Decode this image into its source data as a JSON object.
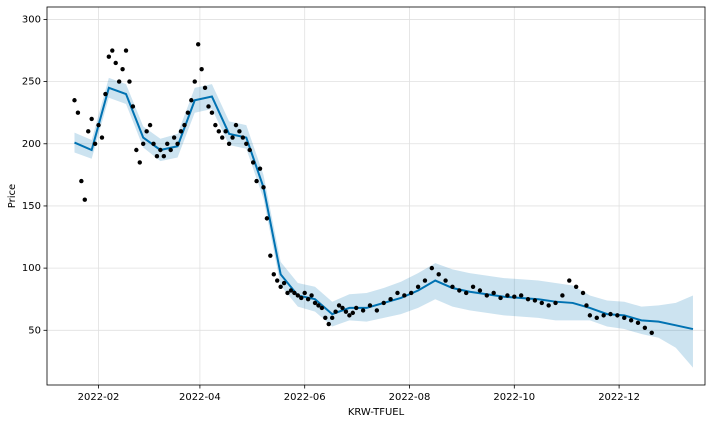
{
  "chart_data": {
    "type": "line",
    "x_label": "KRW-TFUEL",
    "y_label": "Price",
    "grid": true,
    "xlim": [
      "2022-01-02",
      "2023-01-20"
    ],
    "ylim": [
      6,
      310
    ],
    "xticks": [
      {
        "value": "2022-02-01",
        "label": "2022-02"
      },
      {
        "value": "2022-04-01",
        "label": "2022-04"
      },
      {
        "value": "2022-06-01",
        "label": "2022-06"
      },
      {
        "value": "2022-08-01",
        "label": "2022-08"
      },
      {
        "value": "2022-10-01",
        "label": "2022-10"
      },
      {
        "value": "2022-12-01",
        "label": "2022-12"
      }
    ],
    "yticks": [
      50,
      100,
      150,
      200,
      250,
      300
    ],
    "series": [
      {
        "style": "points",
        "color": "#000000",
        "x": [
          "2022-01-18",
          "2022-01-20",
          "2022-01-22",
          "2022-01-24",
          "2022-01-26",
          "2022-01-28",
          "2022-01-30",
          "2022-02-01",
          "2022-02-03",
          "2022-02-05",
          "2022-02-07",
          "2022-02-09",
          "2022-02-11",
          "2022-02-13",
          "2022-02-15",
          "2022-02-17",
          "2022-02-19",
          "2022-02-21",
          "2022-02-23",
          "2022-02-25",
          "2022-02-27",
          "2022-03-01",
          "2022-03-03",
          "2022-03-05",
          "2022-03-07",
          "2022-03-09",
          "2022-03-11",
          "2022-03-13",
          "2022-03-15",
          "2022-03-17",
          "2022-03-19",
          "2022-03-21",
          "2022-03-23",
          "2022-03-25",
          "2022-03-27",
          "2022-03-29",
          "2022-03-31",
          "2022-04-02",
          "2022-04-04",
          "2022-04-06",
          "2022-04-08",
          "2022-04-10",
          "2022-04-12",
          "2022-04-14",
          "2022-04-16",
          "2022-04-18",
          "2022-04-20",
          "2022-04-22",
          "2022-04-24",
          "2022-04-26",
          "2022-04-28",
          "2022-04-30",
          "2022-05-02",
          "2022-05-04",
          "2022-05-06",
          "2022-05-08",
          "2022-05-10",
          "2022-05-12",
          "2022-05-14",
          "2022-05-16",
          "2022-05-18",
          "2022-05-20",
          "2022-05-22",
          "2022-05-24",
          "2022-05-26",
          "2022-05-28",
          "2022-05-30",
          "2022-06-01",
          "2022-06-03",
          "2022-06-05",
          "2022-06-07",
          "2022-06-09",
          "2022-06-11",
          "2022-06-13",
          "2022-06-15",
          "2022-06-17",
          "2022-06-19",
          "2022-06-21",
          "2022-06-23",
          "2022-06-25",
          "2022-06-27",
          "2022-06-29",
          "2022-07-01",
          "2022-07-05",
          "2022-07-09",
          "2022-07-13",
          "2022-07-17",
          "2022-07-21",
          "2022-07-25",
          "2022-07-29",
          "2022-08-02",
          "2022-08-06",
          "2022-08-10",
          "2022-08-14",
          "2022-08-18",
          "2022-08-22",
          "2022-08-26",
          "2022-08-30",
          "2022-09-03",
          "2022-09-07",
          "2022-09-11",
          "2022-09-15",
          "2022-09-19",
          "2022-09-23",
          "2022-09-27",
          "2022-10-01",
          "2022-10-05",
          "2022-10-09",
          "2022-10-13",
          "2022-10-17",
          "2022-10-21",
          "2022-10-25",
          "2022-10-29",
          "2022-11-02",
          "2022-11-06",
          "2022-11-10",
          "2022-11-12",
          "2022-11-14",
          "2022-11-18",
          "2022-11-22",
          "2022-11-26",
          "2022-11-30",
          "2022-12-04",
          "2022-12-08",
          "2022-12-12",
          "2022-12-16",
          "2022-12-20"
        ],
        "values": [
          235,
          225,
          170,
          155,
          210,
          220,
          200,
          215,
          205,
          240,
          270,
          275,
          265,
          250,
          260,
          275,
          250,
          230,
          195,
          185,
          200,
          210,
          215,
          200,
          190,
          195,
          190,
          200,
          195,
          205,
          200,
          210,
          215,
          225,
          235,
          250,
          280,
          260,
          245,
          230,
          225,
          215,
          210,
          205,
          210,
          200,
          205,
          215,
          210,
          205,
          200,
          195,
          185,
          170,
          180,
          165,
          140,
          110,
          95,
          90,
          85,
          88,
          80,
          82,
          80,
          78,
          76,
          80,
          75,
          78,
          72,
          70,
          68,
          60,
          55,
          60,
          65,
          70,
          68,
          65,
          62,
          64,
          68,
          66,
          70,
          66,
          72,
          75,
          80,
          78,
          80,
          85,
          90,
          100,
          95,
          90,
          85,
          82,
          80,
          85,
          82,
          78,
          80,
          76,
          78,
          77,
          78,
          75,
          74,
          72,
          70,
          72,
          78,
          90,
          85,
          80,
          70,
          62,
          60,
          62,
          63,
          62,
          60,
          58,
          56,
          52,
          48
        ]
      },
      {
        "style": "forecast",
        "color": "#0072b2",
        "x": [
          "2022-01-18",
          "2022-01-28",
          "2022-02-07",
          "2022-02-17",
          "2022-02-27",
          "2022-03-09",
          "2022-03-19",
          "2022-03-29",
          "2022-04-08",
          "2022-04-18",
          "2022-04-28",
          "2022-05-08",
          "2022-05-18",
          "2022-05-28",
          "2022-06-07",
          "2022-06-17",
          "2022-06-27",
          "2022-07-07",
          "2022-07-17",
          "2022-07-27",
          "2022-08-06",
          "2022-08-16",
          "2022-08-26",
          "2022-09-05",
          "2022-09-15",
          "2022-09-25",
          "2022-10-05",
          "2022-10-15",
          "2022-10-25",
          "2022-11-04",
          "2022-11-14",
          "2022-11-24",
          "2022-12-04",
          "2022-12-14",
          "2022-12-24",
          "2023-01-03",
          "2023-01-13"
        ],
        "values": [
          201,
          195,
          245,
          240,
          205,
          195,
          198,
          235,
          238,
          208,
          205,
          165,
          95,
          78,
          75,
          63,
          68,
          68,
          72,
          76,
          82,
          90,
          84,
          81,
          79,
          77,
          76,
          75,
          73,
          72,
          68,
          63,
          62,
          58,
          57,
          54,
          51
        ],
        "lower": [
          193,
          188,
          237,
          232,
          197,
          186,
          189,
          225,
          228,
          199,
          196,
          156,
          86,
          69,
          65,
          53,
          58,
          57,
          60,
          63,
          68,
          75,
          69,
          66,
          64,
          62,
          61,
          60,
          58,
          58,
          58,
          53,
          51,
          47,
          44,
          36,
          20
        ],
        "upper": [
          209,
          203,
          253,
          248,
          214,
          204,
          208,
          245,
          248,
          218,
          215,
          175,
          105,
          88,
          85,
          73,
          79,
          80,
          84,
          89,
          96,
          104,
          99,
          96,
          94,
          92,
          91,
          90,
          88,
          86,
          78,
          74,
          73,
          69,
          70,
          72,
          78
        ]
      }
    ]
  }
}
